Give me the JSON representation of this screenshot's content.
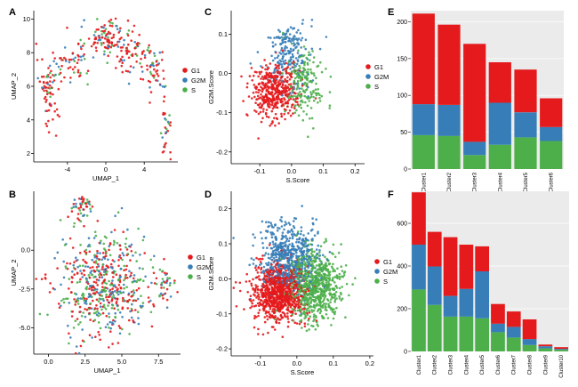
{
  "colors": {
    "G1": "#e41a1c",
    "G2M": "#377eb8",
    "S": "#4daf4a",
    "axis": "#000000",
    "grid": "#ffffff",
    "bg": "#ffffff"
  },
  "phase_legend": [
    "G1",
    "G2M",
    "S"
  ],
  "chart_data": [
    {
      "panel": "A",
      "type": "scatter",
      "xlabel": "UMAP_1",
      "ylabel": "UMAP_2",
      "xlim": [
        -7.5,
        7.5
      ],
      "ylim": [
        1.5,
        10.5
      ],
      "xticks": [
        -4,
        0,
        4
      ],
      "yticks": [
        2,
        4,
        6,
        8,
        10
      ],
      "legend_position": "right",
      "series": [
        {
          "name": "G1",
          "clusters": [
            [
              -6.0,
              6.2,
              0.6,
              0.8,
              40
            ],
            [
              -3.5,
              7.5,
              1.0,
              0.6,
              30
            ],
            [
              0.0,
              8.8,
              1.2,
              0.6,
              60
            ],
            [
              2.5,
              8.0,
              1.0,
              0.7,
              40
            ],
            [
              5.0,
              7.0,
              0.6,
              0.8,
              30
            ],
            [
              6.2,
              4.0,
              0.3,
              1.0,
              20
            ],
            [
              -5.5,
              4.5,
              0.5,
              0.6,
              15
            ]
          ]
        },
        {
          "name": "G2M",
          "clusters": [
            [
              -6.0,
              6.2,
              0.6,
              0.8,
              12
            ],
            [
              -3.0,
              7.6,
              1.0,
              0.6,
              12
            ],
            [
              0.0,
              8.8,
              1.2,
              0.6,
              20
            ],
            [
              3.0,
              8.0,
              1.0,
              0.7,
              12
            ],
            [
              5.0,
              7.0,
              0.6,
              0.8,
              10
            ],
            [
              6.2,
              4.0,
              0.3,
              1.0,
              8
            ]
          ]
        },
        {
          "name": "S",
          "clusters": [
            [
              -6.0,
              6.2,
              0.6,
              0.8,
              10
            ],
            [
              -3.0,
              7.5,
              1.0,
              0.6,
              10
            ],
            [
              0.0,
              8.8,
              1.2,
              0.6,
              16
            ],
            [
              3.0,
              8.0,
              1.0,
              0.7,
              10
            ],
            [
              5.0,
              7.0,
              0.6,
              0.8,
              8
            ],
            [
              6.2,
              4.0,
              0.3,
              1.0,
              6
            ]
          ]
        }
      ]
    },
    {
      "panel": "B",
      "type": "scatter",
      "xlabel": "UMAP_1",
      "ylabel": "UMAP_2",
      "xlim": [
        -1.0,
        9.0
      ],
      "ylim": [
        -6.7,
        3.8
      ],
      "xticks": [
        0.0,
        2.5,
        5.0,
        7.5
      ],
      "yticks": [
        0.0,
        -2.5,
        -5.0
      ],
      "xtick_labels": [
        "0.0",
        "2.5",
        "5.0",
        "7.5"
      ],
      "ytick_labels": [
        "0.0",
        "-2.5",
        "-5.0"
      ],
      "legend_position": "right",
      "series": [
        {
          "name": "G1",
          "clusters": [
            [
              3.8,
              -2.2,
              1.5,
              1.7,
              230
            ],
            [
              2.2,
              2.8,
              0.4,
              0.4,
              20
            ],
            [
              7.8,
              -2.4,
              0.4,
              0.6,
              15
            ],
            [
              -0.5,
              -1.8,
              0.2,
              0.2,
              5
            ]
          ]
        },
        {
          "name": "G2M",
          "clusters": [
            [
              3.8,
              -2.2,
              1.5,
              1.7,
              160
            ],
            [
              2.2,
              2.8,
              0.4,
              0.4,
              12
            ],
            [
              7.8,
              -2.4,
              0.4,
              0.6,
              10
            ]
          ]
        },
        {
          "name": "S",
          "clusters": [
            [
              3.8,
              -2.2,
              1.5,
              1.7,
              180
            ],
            [
              2.2,
              2.8,
              0.4,
              0.4,
              12
            ],
            [
              7.8,
              -2.4,
              0.4,
              0.6,
              12
            ]
          ]
        }
      ]
    },
    {
      "panel": "C",
      "type": "scatter",
      "xlabel": "S.Score",
      "ylabel": "G2M.Score",
      "xlim": [
        -0.19,
        0.23
      ],
      "ylim": [
        -0.23,
        0.16
      ],
      "xticks": [
        -0.1,
        0.0,
        0.1,
        0.2
      ],
      "yticks": [
        -0.2,
        -0.1,
        0.0,
        0.1
      ],
      "xtick_labels": [
        "-0.1",
        "0.0",
        "0.1",
        "0.2"
      ],
      "ytick_labels": [
        "-0.2",
        "-0.1",
        "0.0",
        "0.1"
      ],
      "legend_position": "right",
      "series": [
        {
          "name": "G1",
          "clusters": [
            [
              -0.05,
              -0.04,
              0.035,
              0.035,
              380
            ],
            [
              -0.09,
              -0.08,
              0.03,
              0.04,
              40
            ]
          ]
        },
        {
          "name": "G2M",
          "clusters": [
            [
              -0.01,
              0.05,
              0.035,
              0.04,
              200
            ]
          ]
        },
        {
          "name": "S",
          "clusters": [
            [
              0.04,
              -0.03,
              0.03,
              0.04,
              180
            ]
          ]
        }
      ]
    },
    {
      "panel": "D",
      "type": "scatter",
      "xlabel": "S.Score",
      "ylabel": "G2M.Score",
      "xlim": [
        -0.18,
        0.21
      ],
      "ylim": [
        -0.22,
        0.25
      ],
      "xticks": [
        -0.1,
        0.0,
        0.1,
        0.2
      ],
      "yticks": [
        -0.2,
        -0.1,
        0.0,
        0.1,
        0.2
      ],
      "xtick_labels": [
        "-0.1",
        "0.0",
        "0.1",
        "0.2"
      ],
      "ytick_labels": [
        "-0.2",
        "-0.1",
        "0.0",
        "0.1",
        "0.2"
      ],
      "legend_position": "right",
      "series": [
        {
          "name": "G1",
          "clusters": [
            [
              -0.05,
              -0.04,
              0.035,
              0.04,
              900
            ]
          ]
        },
        {
          "name": "G2M",
          "clusters": [
            [
              -0.02,
              0.06,
              0.04,
              0.05,
              600
            ]
          ]
        },
        {
          "name": "S",
          "clusters": [
            [
              0.05,
              -0.02,
              0.035,
              0.05,
              700
            ]
          ]
        }
      ]
    },
    {
      "panel": "E",
      "type": "bar",
      "stacked": true,
      "categories": [
        "Cluster1",
        "Cluster2",
        "Cluster3",
        "Cluster4",
        "Cluster5",
        "Cluster6"
      ],
      "ylim": [
        0,
        215
      ],
      "yticks": [
        0,
        50,
        100,
        150,
        200
      ],
      "series": [
        {
          "name": "S",
          "values": [
            46,
            45,
            19,
            33,
            43,
            38
          ]
        },
        {
          "name": "G2M",
          "values": [
            42,
            42,
            18,
            57,
            34,
            19
          ]
        },
        {
          "name": "G1",
          "values": [
            123,
            109,
            133,
            55,
            58,
            39
          ]
        }
      ]
    },
    {
      "panel": "F",
      "type": "bar",
      "stacked": true,
      "categories": [
        "Cluster1",
        "Cluster2",
        "Cluster3",
        "Cluster4",
        "Cluster5",
        "Cluster6",
        "Cluster7",
        "Cluster8",
        "Cluster9",
        "Cluster10"
      ],
      "ylim": [
        0,
        750
      ],
      "yticks": [
        0,
        200,
        400,
        600
      ],
      "series": [
        {
          "name": "S",
          "values": [
            290,
            218,
            163,
            163,
            155,
            90,
            65,
            30,
            14,
            8
          ]
        },
        {
          "name": "G2M",
          "values": [
            210,
            180,
            97,
            130,
            220,
            40,
            50,
            28,
            10,
            4
          ]
        },
        {
          "name": "G1",
          "values": [
            245,
            162,
            275,
            207,
            117,
            92,
            72,
            92,
            8,
            8
          ]
        }
      ]
    }
  ]
}
